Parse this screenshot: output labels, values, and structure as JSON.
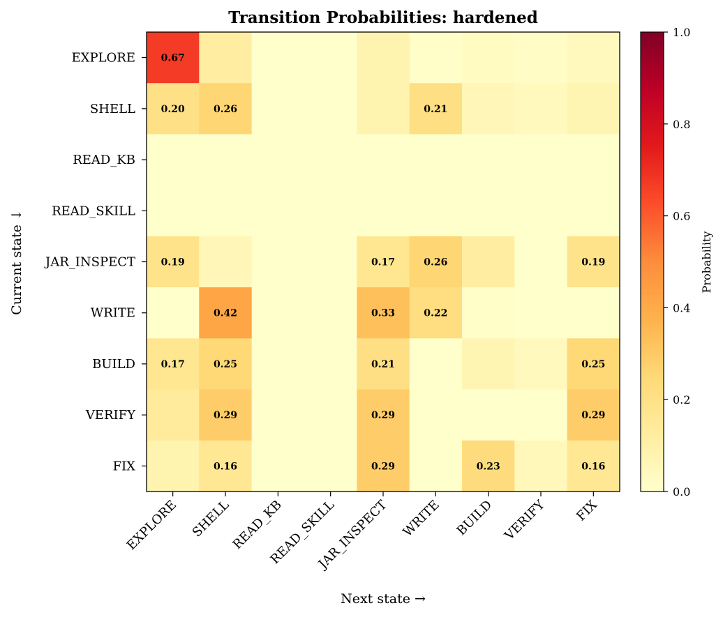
{
  "chart_data": {
    "type": "heatmap",
    "title": "Transition Probabilities: hardened",
    "xlabel": "Next state →",
    "ylabel": "Current state ↓",
    "x_categories": [
      "EXPLORE",
      "SHELL",
      "READ_KB",
      "READ_SKILL",
      "JAR_INSPECT",
      "WRITE",
      "BUILD",
      "VERIFY",
      "FIX"
    ],
    "y_categories": [
      "EXPLORE",
      "SHELL",
      "READ_KB",
      "READ_SKILL",
      "JAR_INSPECT",
      "WRITE",
      "BUILD",
      "VERIFY",
      "FIX"
    ],
    "values": [
      [
        0.67,
        0.12,
        0.0,
        0.0,
        0.08,
        0.01,
        0.03,
        0.02,
        0.04
      ],
      [
        0.2,
        0.26,
        0.0,
        0.0,
        0.08,
        0.21,
        0.06,
        0.04,
        0.07
      ],
      [
        0.0,
        0.0,
        0.0,
        0.0,
        0.0,
        0.0,
        0.0,
        0.0,
        0.0
      ],
      [
        0.0,
        0.0,
        0.0,
        0.0,
        0.0,
        0.0,
        0.0,
        0.0,
        0.0
      ],
      [
        0.19,
        0.06,
        0.0,
        0.0,
        0.17,
        0.26,
        0.12,
        0.0,
        0.19
      ],
      [
        0.0,
        0.42,
        0.0,
        0.0,
        0.33,
        0.22,
        0.01,
        0.0,
        0.0
      ],
      [
        0.17,
        0.25,
        0.0,
        0.0,
        0.21,
        0.0,
        0.07,
        0.04,
        0.25
      ],
      [
        0.14,
        0.29,
        0.0,
        0.0,
        0.29,
        0.0,
        0.0,
        0.0,
        0.29
      ],
      [
        0.08,
        0.16,
        0.0,
        0.0,
        0.29,
        0.0,
        0.23,
        0.05,
        0.16
      ]
    ],
    "annotation_threshold": 0.15,
    "colormap": "YlOrRd",
    "vmin": 0.0,
    "vmax": 1.0,
    "colorbar": {
      "label": "Probability",
      "ticks": [
        0.0,
        0.2,
        0.4,
        0.6,
        0.8,
        1.0
      ],
      "tick_labels": [
        "0.0",
        "0.2",
        "0.4",
        "0.6",
        "0.8",
        "1.0"
      ]
    },
    "colormap_stops": [
      "#ffffcc",
      "#ffeda0",
      "#fed976",
      "#feb24c",
      "#fd8d3c",
      "#fc4e2a",
      "#e31a1c",
      "#bd0026",
      "#800026"
    ]
  }
}
